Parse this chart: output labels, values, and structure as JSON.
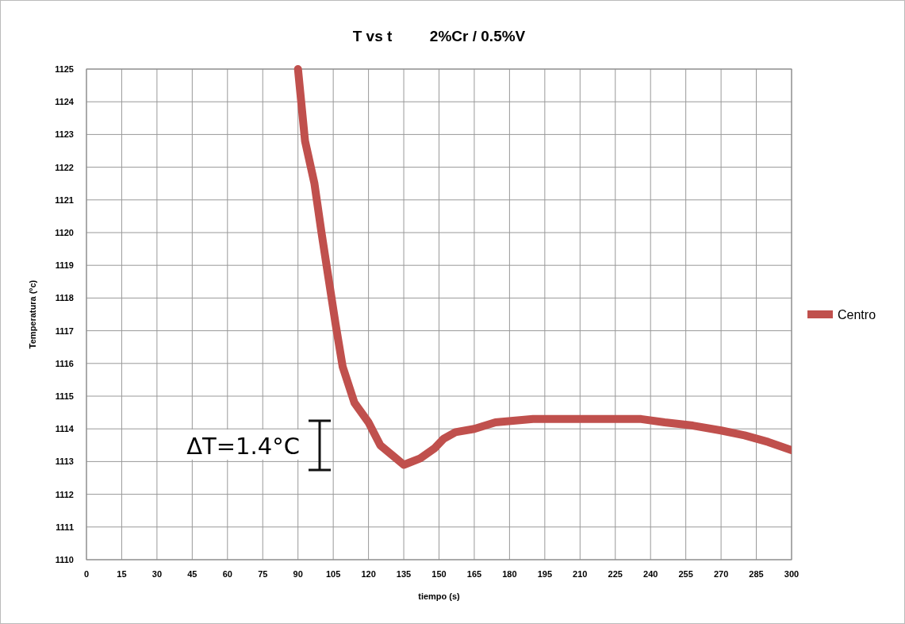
{
  "chart_data": {
    "type": "line",
    "title": "T vs t         2%Cr / 0.5%V",
    "xlabel": "tiempo (s)",
    "ylabel": "Temperatura (ºc)",
    "series": [
      {
        "name": "Centro",
        "color": "#c0504d",
        "x": [
          90,
          93,
          97,
          100,
          103,
          106,
          109,
          114,
          120,
          125,
          130,
          135,
          142,
          148,
          152,
          157,
          165,
          174,
          190,
          210,
          236,
          246,
          258,
          270,
          280,
          290,
          300
        ],
        "values": [
          1125,
          1122.8,
          1121.5,
          1120,
          1118.6,
          1117.2,
          1115.9,
          1114.8,
          1114.2,
          1113.5,
          1113.2,
          1112.9,
          1113.1,
          1113.4,
          1113.7,
          1113.9,
          1114,
          1114.2,
          1114.3,
          1114.3,
          1114.3,
          1114.2,
          1114.1,
          1113.95,
          1113.8,
          1113.6,
          1113.35
        ]
      }
    ],
    "xlim": [
      0,
      300
    ],
    "xticks": [
      0,
      15,
      30,
      45,
      60,
      75,
      90,
      105,
      120,
      135,
      150,
      165,
      180,
      195,
      210,
      225,
      240,
      255,
      270,
      285,
      300
    ],
    "ylim": [
      1110,
      1125
    ],
    "yticks": [
      1110,
      1111,
      1112,
      1113,
      1114,
      1115,
      1116,
      1117,
      1118,
      1119,
      1120,
      1121,
      1122,
      1123,
      1124,
      1125
    ],
    "grid": true,
    "legend": "right",
    "line_style": "solid",
    "annotations": [
      "ΔT=1.4°C"
    ]
  }
}
